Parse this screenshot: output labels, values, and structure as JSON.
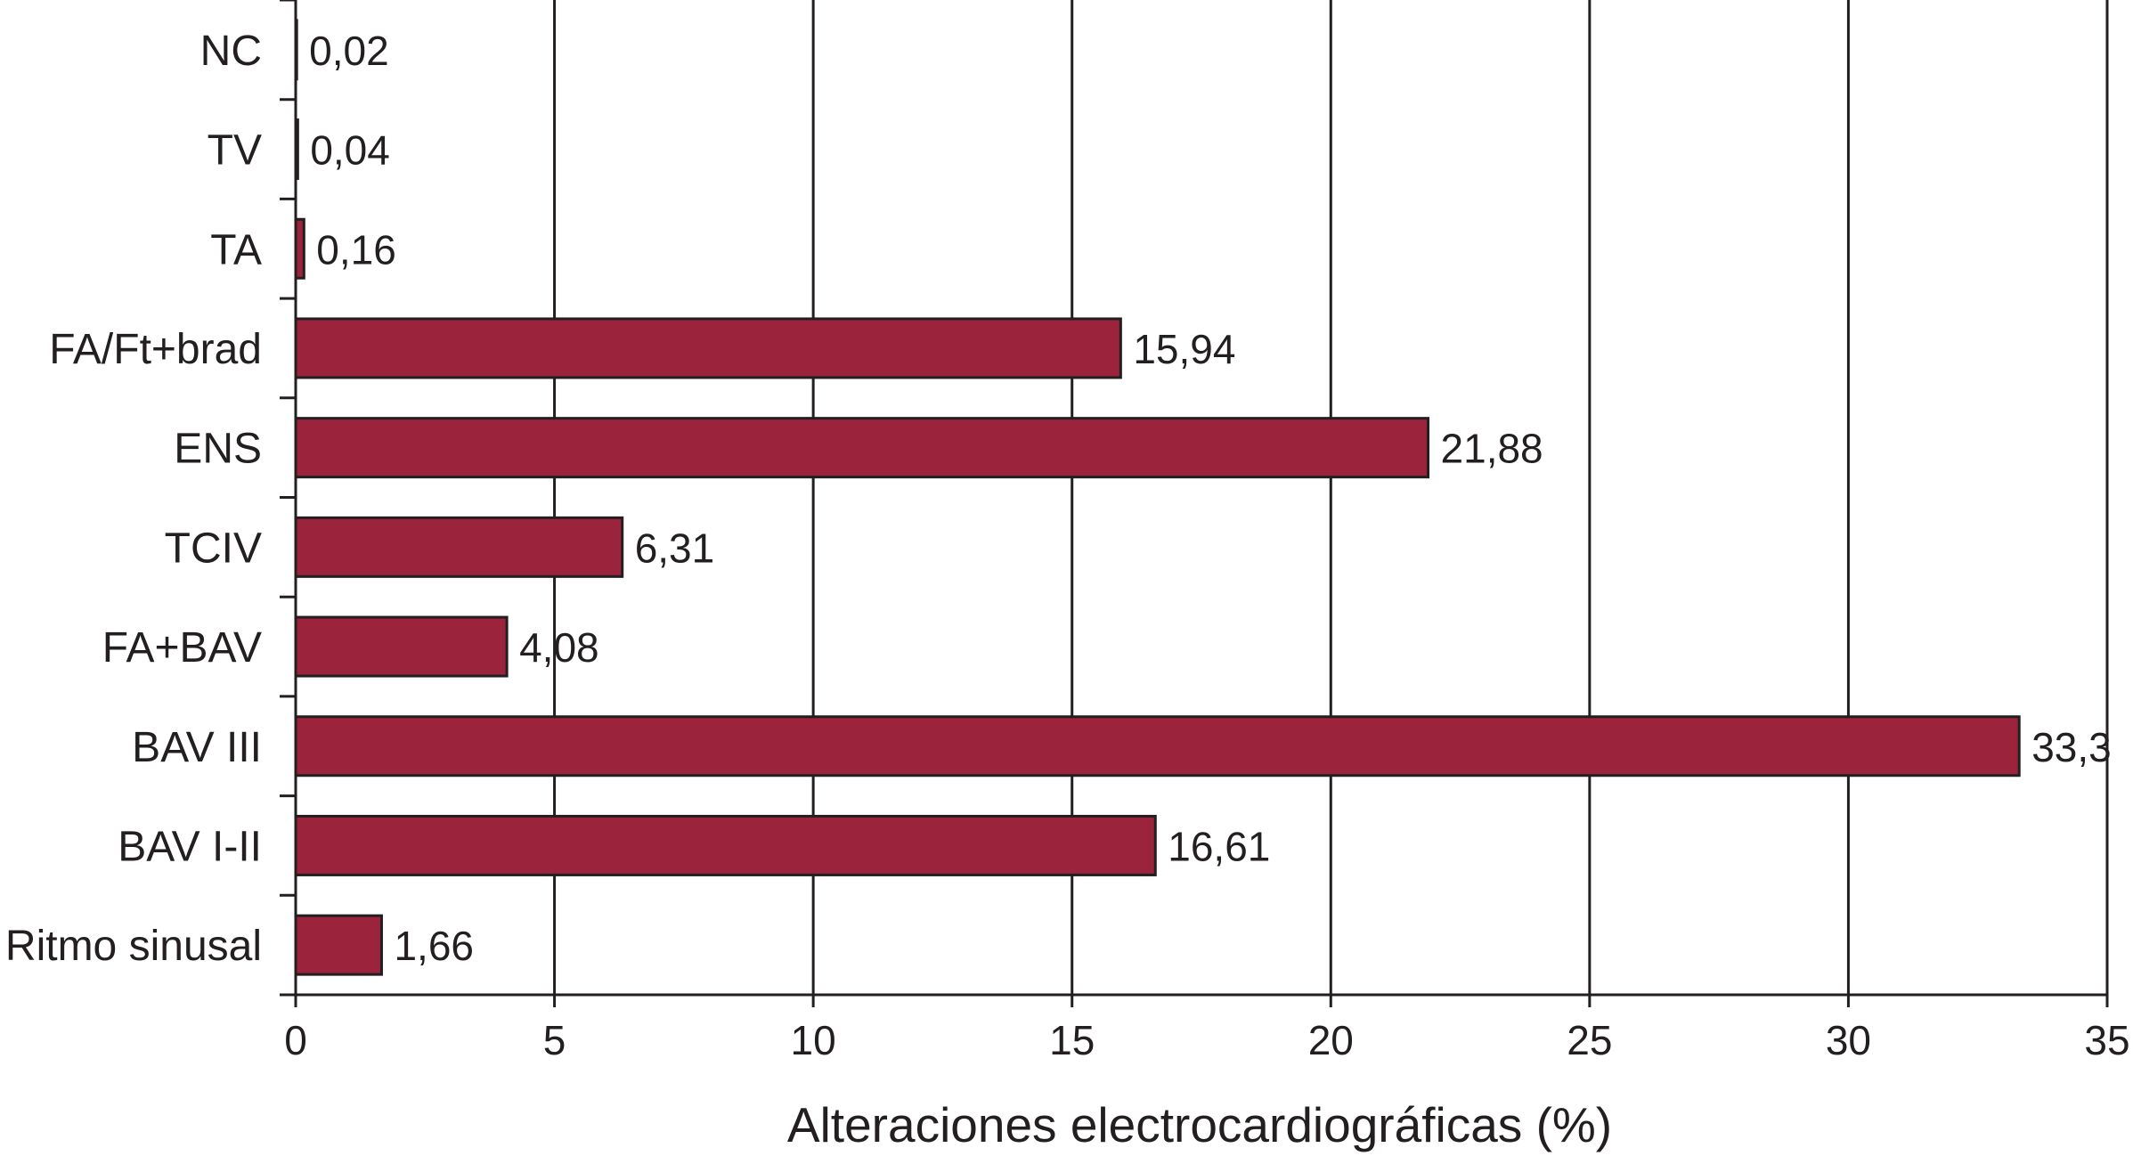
{
  "chart_data": {
    "type": "bar",
    "orientation": "horizontal",
    "categories": [
      "NC",
      "TV",
      "TA",
      "FA/Ft+brad",
      "ENS",
      "TCIV",
      "FA+BAV",
      "BAV III",
      "BAV I-II",
      "Ritmo sinusal"
    ],
    "values": [
      0.02,
      0.04,
      0.16,
      15.94,
      21.88,
      6.31,
      4.08,
      33.3,
      16.61,
      1.66
    ],
    "value_labels": [
      "0,02",
      "0,04",
      "0,16",
      "15,94",
      "21,88",
      "6,31",
      "4,08",
      "33,3",
      "16,61",
      "1,66"
    ],
    "xlabel": "Alteraciones electrocardiográficas (%)",
    "ylabel": "",
    "title": "",
    "xlim": [
      0,
      35
    ],
    "xticks": [
      0,
      5,
      10,
      15,
      20,
      25,
      30,
      35
    ],
    "xtick_labels": [
      "0",
      "5",
      "10",
      "15",
      "20",
      "25",
      "30",
      "35"
    ],
    "grid": "vertical",
    "legend": "none",
    "colors": {
      "bar_fill": "#9b233b",
      "bar_stroke": "#231f20",
      "grid": "#231f20",
      "text": "#231f20"
    }
  }
}
